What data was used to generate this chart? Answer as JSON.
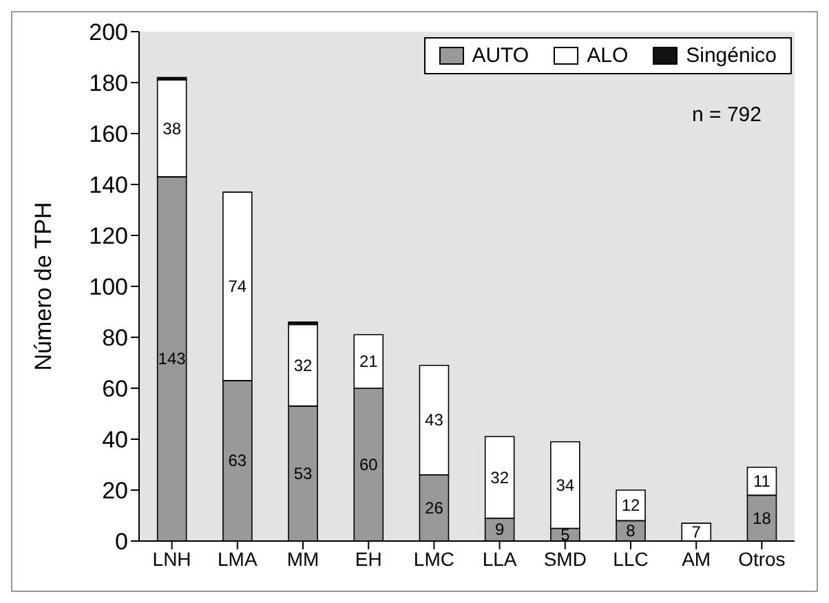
{
  "chart_data": {
    "type": "bar",
    "stacked": true,
    "ylabel": "Número de TPH",
    "categories": [
      "LNH",
      "LMA",
      "MM",
      "EH",
      "LMC",
      "LLA",
      "SMD",
      "LLC",
      "AM",
      "Otros"
    ],
    "series": [
      {
        "name": "AUTO",
        "color": "#999999",
        "values": [
          143,
          63,
          53,
          60,
          26,
          9,
          5,
          8,
          0,
          18
        ],
        "value_labels": [
          "143",
          "63",
          "53",
          "60",
          "26",
          "9",
          "5",
          "8",
          null,
          "18"
        ]
      },
      {
        "name": "ALO",
        "color": "#ffffff",
        "values": [
          38,
          74,
          32,
          21,
          43,
          32,
          34,
          12,
          7,
          11
        ],
        "value_labels": [
          "38",
          "74",
          "32",
          "21",
          "43",
          "32",
          "34",
          "12",
          "7",
          "11"
        ]
      },
      {
        "name": "Singénico",
        "color": "#111111",
        "values": [
          1,
          0,
          1,
          0,
          0,
          0,
          0,
          0,
          0,
          0
        ]
      }
    ],
    "ylim": [
      0,
      200
    ],
    "yticks": [
      0,
      20,
      40,
      60,
      80,
      100,
      120,
      140,
      160,
      180,
      200
    ],
    "grid": false,
    "legend": "top right",
    "annotations": [
      "n = 792"
    ]
  }
}
